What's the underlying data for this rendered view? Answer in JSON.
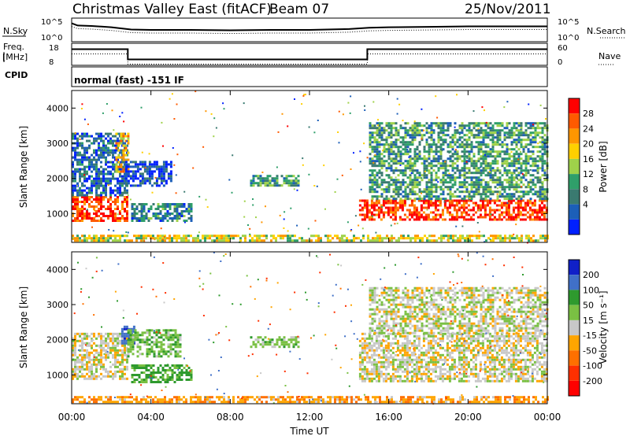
{
  "title": {
    "station": "Christmas Valley East (fitACF)",
    "beam": "Beam 07",
    "date": "25/Nov/2011"
  },
  "status_panels": {
    "nsky": {
      "label": "N.Sky",
      "ticks": [
        "10^5",
        "10^0"
      ]
    },
    "nsearch": {
      "label": "N.Search",
      "ticks": [
        "10^5",
        "10^0"
      ]
    },
    "freq": {
      "label_line1": "Freq.",
      "label_line2": "[MHz]",
      "ticks": [
        "18",
        "8"
      ]
    },
    "nave": {
      "label": "Nave",
      "ticks": [
        "60",
        "0"
      ]
    },
    "cpid": {
      "label": "CPID",
      "text": "normal (fast) -151 IF"
    }
  },
  "x_axis": {
    "label": "Time UT",
    "ticks": [
      "00:00",
      "04:00",
      "08:00",
      "12:00",
      "16:00",
      "20:00",
      "00:00"
    ]
  },
  "chart_data": [
    {
      "type": "line",
      "name": "N.Sky / N.Search",
      "x_hours": [
        0,
        0.3,
        1,
        2,
        3,
        4,
        6,
        8,
        10,
        12,
        14,
        15,
        16,
        18,
        20,
        22,
        24
      ],
      "y_log": [
        4.0,
        3.5,
        3.4,
        3.1,
        2.6,
        2.5,
        2.5,
        2.4,
        2.5,
        2.5,
        2.7,
        3.0,
        3.1,
        3.2,
        3.3,
        3.3,
        3.3
      ],
      "ylim": [
        "10^0",
        "10^5"
      ]
    },
    {
      "type": "line",
      "name": "Freq / Nave",
      "segments": [
        {
          "start": "00:00",
          "end": "02:50",
          "freq_mhz": 15.5
        },
        {
          "start": "02:50",
          "end": "14:55",
          "freq_mhz": 10.5
        },
        {
          "start": "14:55",
          "end": "24:00",
          "freq_mhz": 15.5
        }
      ],
      "ylim_freq": [
        8,
        18
      ],
      "ylim_nave": [
        0,
        60
      ]
    },
    {
      "type": "heatmap",
      "name": "Power",
      "ylabel": "Slant Range [km]",
      "yticks": [
        1000,
        2000,
        3000,
        4000
      ],
      "ylim": [
        180,
        4500
      ],
      "colorbar": {
        "label": "Power [dB]",
        "ticks": [
          "28",
          "24",
          "20",
          "16",
          "12",
          "8",
          "4"
        ],
        "colors": [
          "#ff0000",
          "#ff5a00",
          "#ff9600",
          "#ffd000",
          "#9fd24a",
          "#2f9f6a",
          "#3a7a70",
          "#1c5fb8",
          "#0020ff"
        ]
      },
      "regions": [
        {
          "t0": 0.0,
          "t1": 2.8,
          "r0": 800,
          "r1": 1500,
          "level": 26
        },
        {
          "t0": 0.0,
          "t1": 2.8,
          "r0": 1500,
          "r1": 3300,
          "level": 8
        },
        {
          "t0": 2.2,
          "t1": 2.8,
          "r0": 2200,
          "r1": 3300,
          "level": 20
        },
        {
          "t0": 2.7,
          "t1": 5.0,
          "r0": 1800,
          "r1": 2500,
          "level": 6
        },
        {
          "t0": 3.0,
          "t1": 6.0,
          "r0": 800,
          "r1": 1300,
          "level": 10
        },
        {
          "t0": 9.0,
          "t1": 11.5,
          "r0": 1800,
          "r1": 2100,
          "level": 12
        },
        {
          "t0": 0.0,
          "t1": 24.0,
          "r0": 200,
          "r1": 400,
          "level": 18
        },
        {
          "t0": 14.5,
          "t1": 24.0,
          "r0": 800,
          "r1": 1400,
          "level": 27
        },
        {
          "t0": 15.0,
          "t1": 24.0,
          "r0": 1400,
          "r1": 3600,
          "level": 12
        }
      ]
    },
    {
      "type": "heatmap",
      "name": "Velocity",
      "ylabel": "Slant Range [km]",
      "yticks": [
        1000,
        2000,
        3000,
        4000
      ],
      "ylim": [
        180,
        4500
      ],
      "colorbar": {
        "label": "Velocity [m s⁻¹]",
        "ticks": [
          "200",
          "100",
          "50",
          "15",
          "-15",
          "-50",
          "-100",
          "-200"
        ],
        "colors": [
          "#1020c8",
          "#4070c8",
          "#2e9a2e",
          "#7ac043",
          "#c8c8c8",
          "#ffa500",
          "#ff7000",
          "#ff3000",
          "#ff0000"
        ]
      },
      "regions": [
        {
          "t0": 0.0,
          "t1": 2.8,
          "r0": 900,
          "r1": 2200,
          "level": 0
        },
        {
          "t0": 2.5,
          "t1": 3.2,
          "r0": 1900,
          "r1": 2400,
          "level": 180
        },
        {
          "t0": 2.8,
          "t1": 5.5,
          "r0": 1500,
          "r1": 2300,
          "level": 40
        },
        {
          "t0": 3.0,
          "t1": 6.0,
          "r0": 800,
          "r1": 1300,
          "level": 60
        },
        {
          "t0": 9.0,
          "t1": 11.5,
          "r0": 1800,
          "r1": 2100,
          "level": 30
        },
        {
          "t0": 0.0,
          "t1": 24.0,
          "r0": 200,
          "r1": 400,
          "level": -40
        },
        {
          "t0": 14.5,
          "t1": 24.0,
          "r0": 800,
          "r1": 2200,
          "level": 0
        },
        {
          "t0": 15.0,
          "t1": 24.0,
          "r0": 2200,
          "r1": 3500,
          "level": 5
        }
      ]
    }
  ]
}
